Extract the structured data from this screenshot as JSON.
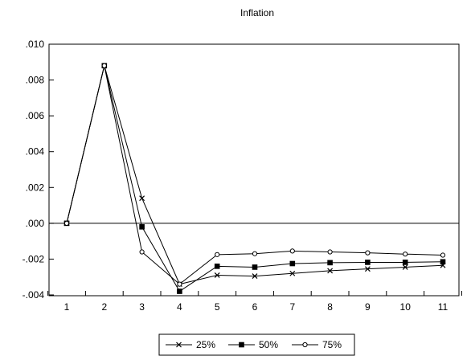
{
  "chart_data": {
    "type": "line",
    "title": "Inflation",
    "xlabel": "",
    "ylabel": "",
    "x": [
      1,
      2,
      3,
      4,
      5,
      6,
      7,
      8,
      9,
      10,
      11
    ],
    "x_tick_labels": [
      "1",
      "2",
      "3",
      "4",
      "5",
      "6",
      "7",
      "8",
      "9",
      "10",
      "11"
    ],
    "ylim": [
      -0.004,
      0.01
    ],
    "y_ticks": [
      -0.004,
      -0.002,
      0.0,
      0.002,
      0.004,
      0.006,
      0.008,
      0.01
    ],
    "y_tick_labels": [
      "-.004",
      "-.002",
      ".000",
      ".002",
      ".004",
      ".006",
      ".008",
      ".010"
    ],
    "grid": false,
    "zero_line": true,
    "legend_position": "bottom-center",
    "series": [
      {
        "name": "25%",
        "marker": "x",
        "values": [
          0.0,
          0.0088,
          0.0014,
          -0.0034,
          -0.0029,
          -0.00295,
          -0.0028,
          -0.00265,
          -0.00255,
          -0.00245,
          -0.00235
        ]
      },
      {
        "name": "50%",
        "marker": "square",
        "values": [
          0.0,
          0.0088,
          -0.0002,
          -0.0038,
          -0.0024,
          -0.00245,
          -0.00225,
          -0.0022,
          -0.00218,
          -0.00218,
          -0.00215
        ]
      },
      {
        "name": "75%",
        "marker": "circle",
        "values": [
          0.0,
          0.0088,
          -0.0016,
          -0.0034,
          -0.00175,
          -0.0017,
          -0.00155,
          -0.0016,
          -0.00165,
          -0.00172,
          -0.00178
        ]
      }
    ],
    "colors": {
      "line": "#000000",
      "background": "#ffffff"
    }
  }
}
